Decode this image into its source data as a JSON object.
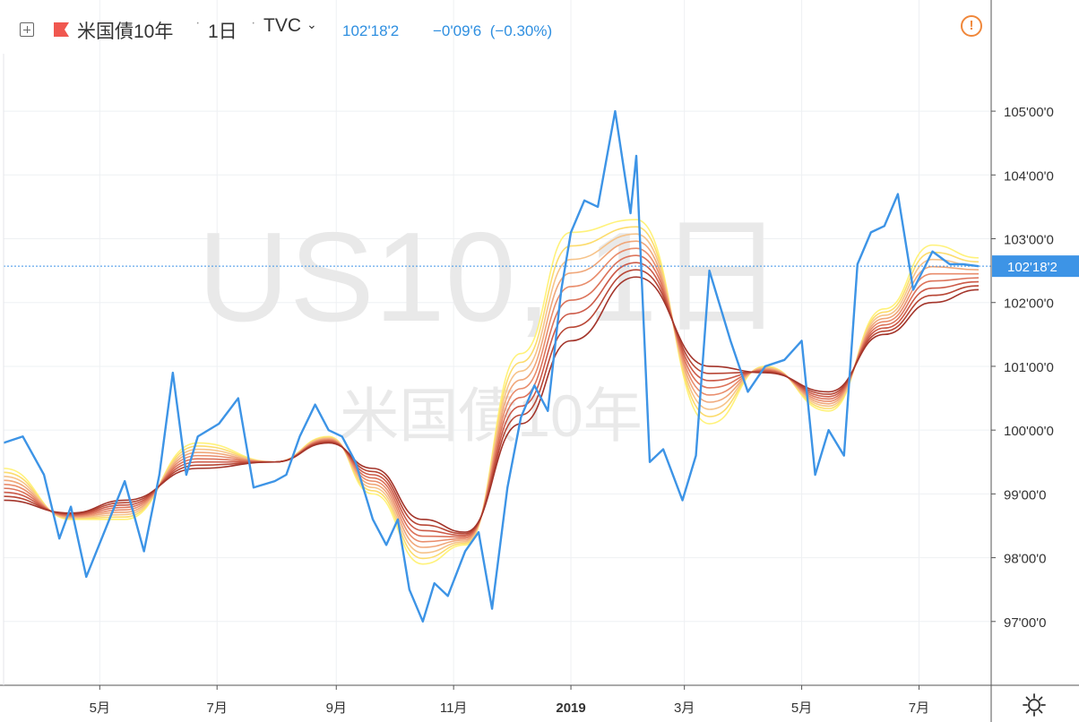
{
  "header": {
    "symbol_name": "米国債10年",
    "interval": "1日",
    "source": "TVC",
    "last_price": "102'18'2",
    "change": "−0'09'6",
    "change_percent": "(−0.30%)"
  },
  "watermark": {
    "line1": "US10, 1日",
    "line2": "米国債10年"
  },
  "price_axis": {
    "labels": [
      "105'00'0",
      "104'00'0",
      "103'00'0",
      "102'00'0",
      "101'00'0",
      "100'00'0",
      "99'00'0",
      "98'00'0",
      "97'00'0"
    ],
    "current_label": "102'18'2"
  },
  "time_axis": {
    "labels": [
      "5月",
      "7月",
      "9月",
      "11月",
      "2019",
      "3月",
      "5月",
      "7月"
    ]
  },
  "colors": {
    "price_line": "#3d94e6",
    "ribbon": [
      "#fff27a",
      "#fcdc6d",
      "#f6c38a",
      "#f0a77a",
      "#e98d6c",
      "#dc735a",
      "#cc5a48",
      "#b84736",
      "#a3342a"
    ],
    "current_price_tag": "#3d94e6",
    "warning": "#f0873a",
    "flag": "#f0574f"
  },
  "chart_data": {
    "type": "line",
    "xlabel": "",
    "ylabel": "",
    "ylim": [
      96.0,
      105.9
    ],
    "x_range": [
      "2018-03-12",
      "2019-08-01"
    ],
    "current_price": 102.57,
    "series": [
      {
        "role": "price",
        "x": [
          "2018-03-12",
          "2018-03-22",
          "2018-04-02",
          "2018-04-10",
          "2018-04-16",
          "2018-04-24",
          "2018-05-02",
          "2018-05-14",
          "2018-05-24",
          "2018-06-01",
          "2018-06-08",
          "2018-06-15",
          "2018-06-21",
          "2018-07-02",
          "2018-07-12",
          "2018-07-20",
          "2018-07-31",
          "2018-08-06",
          "2018-08-13",
          "2018-08-21",
          "2018-08-28",
          "2018-09-04",
          "2018-09-11",
          "2018-09-20",
          "2018-09-27",
          "2018-10-03",
          "2018-10-09",
          "2018-10-16",
          "2018-10-22",
          "2018-10-29",
          "2018-11-07",
          "2018-11-14",
          "2018-11-21",
          "2018-11-29",
          "2018-12-06",
          "2018-12-13",
          "2018-12-20",
          "2018-12-27",
          "2019-01-01",
          "2019-01-08",
          "2019-01-15",
          "2019-01-24",
          "2019-02-01",
          "2019-02-04",
          "2019-02-11",
          "2019-02-18",
          "2019-02-28",
          "2019-03-07",
          "2019-03-14",
          "2019-03-25",
          "2019-04-03",
          "2019-04-12",
          "2019-04-22",
          "2019-05-01",
          "2019-05-08",
          "2019-05-15",
          "2019-05-23",
          "2019-05-30",
          "2019-06-06",
          "2019-06-13",
          "2019-06-20",
          "2019-06-28",
          "2019-07-08",
          "2019-07-17",
          "2019-07-24",
          "2019-08-01"
        ],
        "y": [
          99.8,
          99.9,
          99.3,
          98.3,
          98.8,
          97.7,
          98.3,
          99.2,
          98.1,
          99.3,
          100.9,
          99.3,
          99.9,
          100.1,
          100.5,
          99.1,
          99.2,
          99.3,
          99.9,
          100.4,
          100.0,
          99.9,
          99.5,
          98.6,
          98.2,
          98.6,
          97.5,
          97.0,
          97.6,
          97.4,
          98.1,
          98.4,
          97.2,
          99.1,
          100.2,
          100.7,
          100.3,
          102.2,
          103.1,
          103.6,
          103.5,
          105.0,
          103.4,
          104.3,
          99.5,
          99.7,
          98.9,
          99.6,
          102.5,
          101.4,
          100.6,
          101.0,
          101.1,
          101.4,
          99.3,
          100.0,
          99.6,
          102.6,
          103.1,
          103.2,
          103.7,
          102.2,
          102.8,
          102.6,
          102.6,
          102.57
        ]
      },
      {
        "role": "moving-average-fastest",
        "x": [
          "2018-03-12",
          "2018-04-16",
          "2018-05-14",
          "2018-06-21",
          "2018-07-31",
          "2018-08-28",
          "2018-09-20",
          "2018-10-16",
          "2018-11-07",
          "2018-12-06",
          "2019-01-01",
          "2019-02-04",
          "2019-03-14",
          "2019-04-12",
          "2019-05-15",
          "2019-06-13",
          "2019-07-08",
          "2019-08-01"
        ],
        "y": [
          99.4,
          98.6,
          98.6,
          99.8,
          99.5,
          99.9,
          99.0,
          97.9,
          98.2,
          101.2,
          103.1,
          103.3,
          100.1,
          101.0,
          100.3,
          101.9,
          102.9,
          102.7
        ]
      },
      {
        "role": "moving-average-slowest",
        "x": [
          "2018-03-12",
          "2018-04-16",
          "2018-05-14",
          "2018-06-21",
          "2018-07-31",
          "2018-08-28",
          "2018-09-20",
          "2018-10-16",
          "2018-11-07",
          "2018-12-06",
          "2019-01-01",
          "2019-02-04",
          "2019-03-14",
          "2019-04-12",
          "2019-05-15",
          "2019-06-13",
          "2019-07-08",
          "2019-08-01"
        ],
        "y": [
          98.9,
          98.7,
          98.9,
          99.4,
          99.5,
          99.8,
          99.4,
          98.6,
          98.4,
          100.1,
          101.4,
          102.4,
          101.0,
          100.9,
          100.6,
          101.5,
          102.0,
          102.2
        ]
      }
    ]
  }
}
